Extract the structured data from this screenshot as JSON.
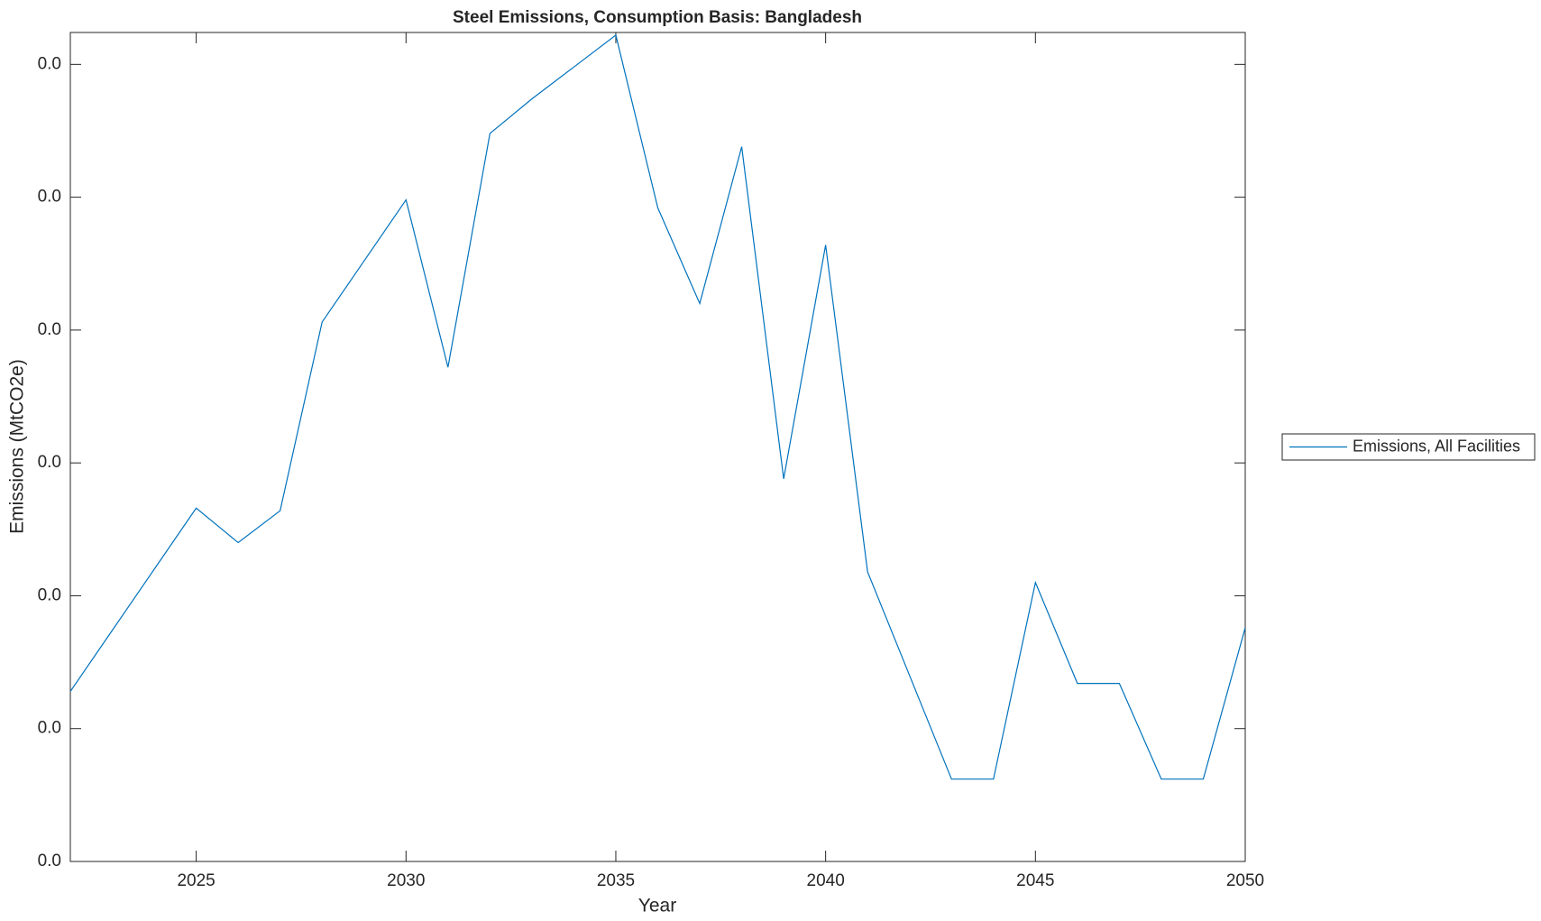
{
  "chart_data": {
    "type": "line",
    "title": "Steel Emissions, Consumption Basis: Bangladesh",
    "x_label": "Year",
    "y_label": "Emissions (MtCO2e)",
    "x": [
      2022,
      2023,
      2024,
      2025,
      2026,
      2027,
      2028,
      2029,
      2030,
      2031,
      2032,
      2033,
      2034,
      2035,
      2036,
      2037,
      2038,
      2039,
      2040,
      2041,
      2042,
      2043,
      2044,
      2045,
      2046,
      2047,
      2048,
      2049,
      2050
    ],
    "series": [
      {
        "name": "Emissions, All Facilities",
        "color": "#0072bd",
        "values": [
          0.0064,
          0.0087,
          0.011,
          0.0133,
          0.012,
          0.0132,
          0.0203,
          0.0226,
          0.0249,
          0.0186,
          0.0274,
          0.0287,
          0.0299,
          0.0311,
          0.0246,
          0.021,
          0.0269,
          0.0144,
          0.0232,
          0.0109,
          0.007,
          0.0031,
          0.0031,
          0.0105,
          0.0067,
          0.0067,
          0.0031,
          0.0031,
          0.0088
        ]
      }
    ],
    "xlim": [
      2022,
      2050
    ],
    "xticks": [
      2025,
      2030,
      2035,
      2040,
      2045,
      2050
    ],
    "ylim": [
      0,
      0.0312
    ],
    "yticks": [
      {
        "value": 0,
        "label": "0.0"
      },
      {
        "value": 0.005,
        "label": "0.0"
      },
      {
        "value": 0.01,
        "label": "0.0"
      },
      {
        "value": 0.015,
        "label": "0.0"
      },
      {
        "value": 0.02,
        "label": "0.0"
      },
      {
        "value": 0.025,
        "label": "0.0"
      },
      {
        "value": 0.03,
        "label": "0.0"
      }
    ],
    "grid": false,
    "legend": "outside-right"
  }
}
